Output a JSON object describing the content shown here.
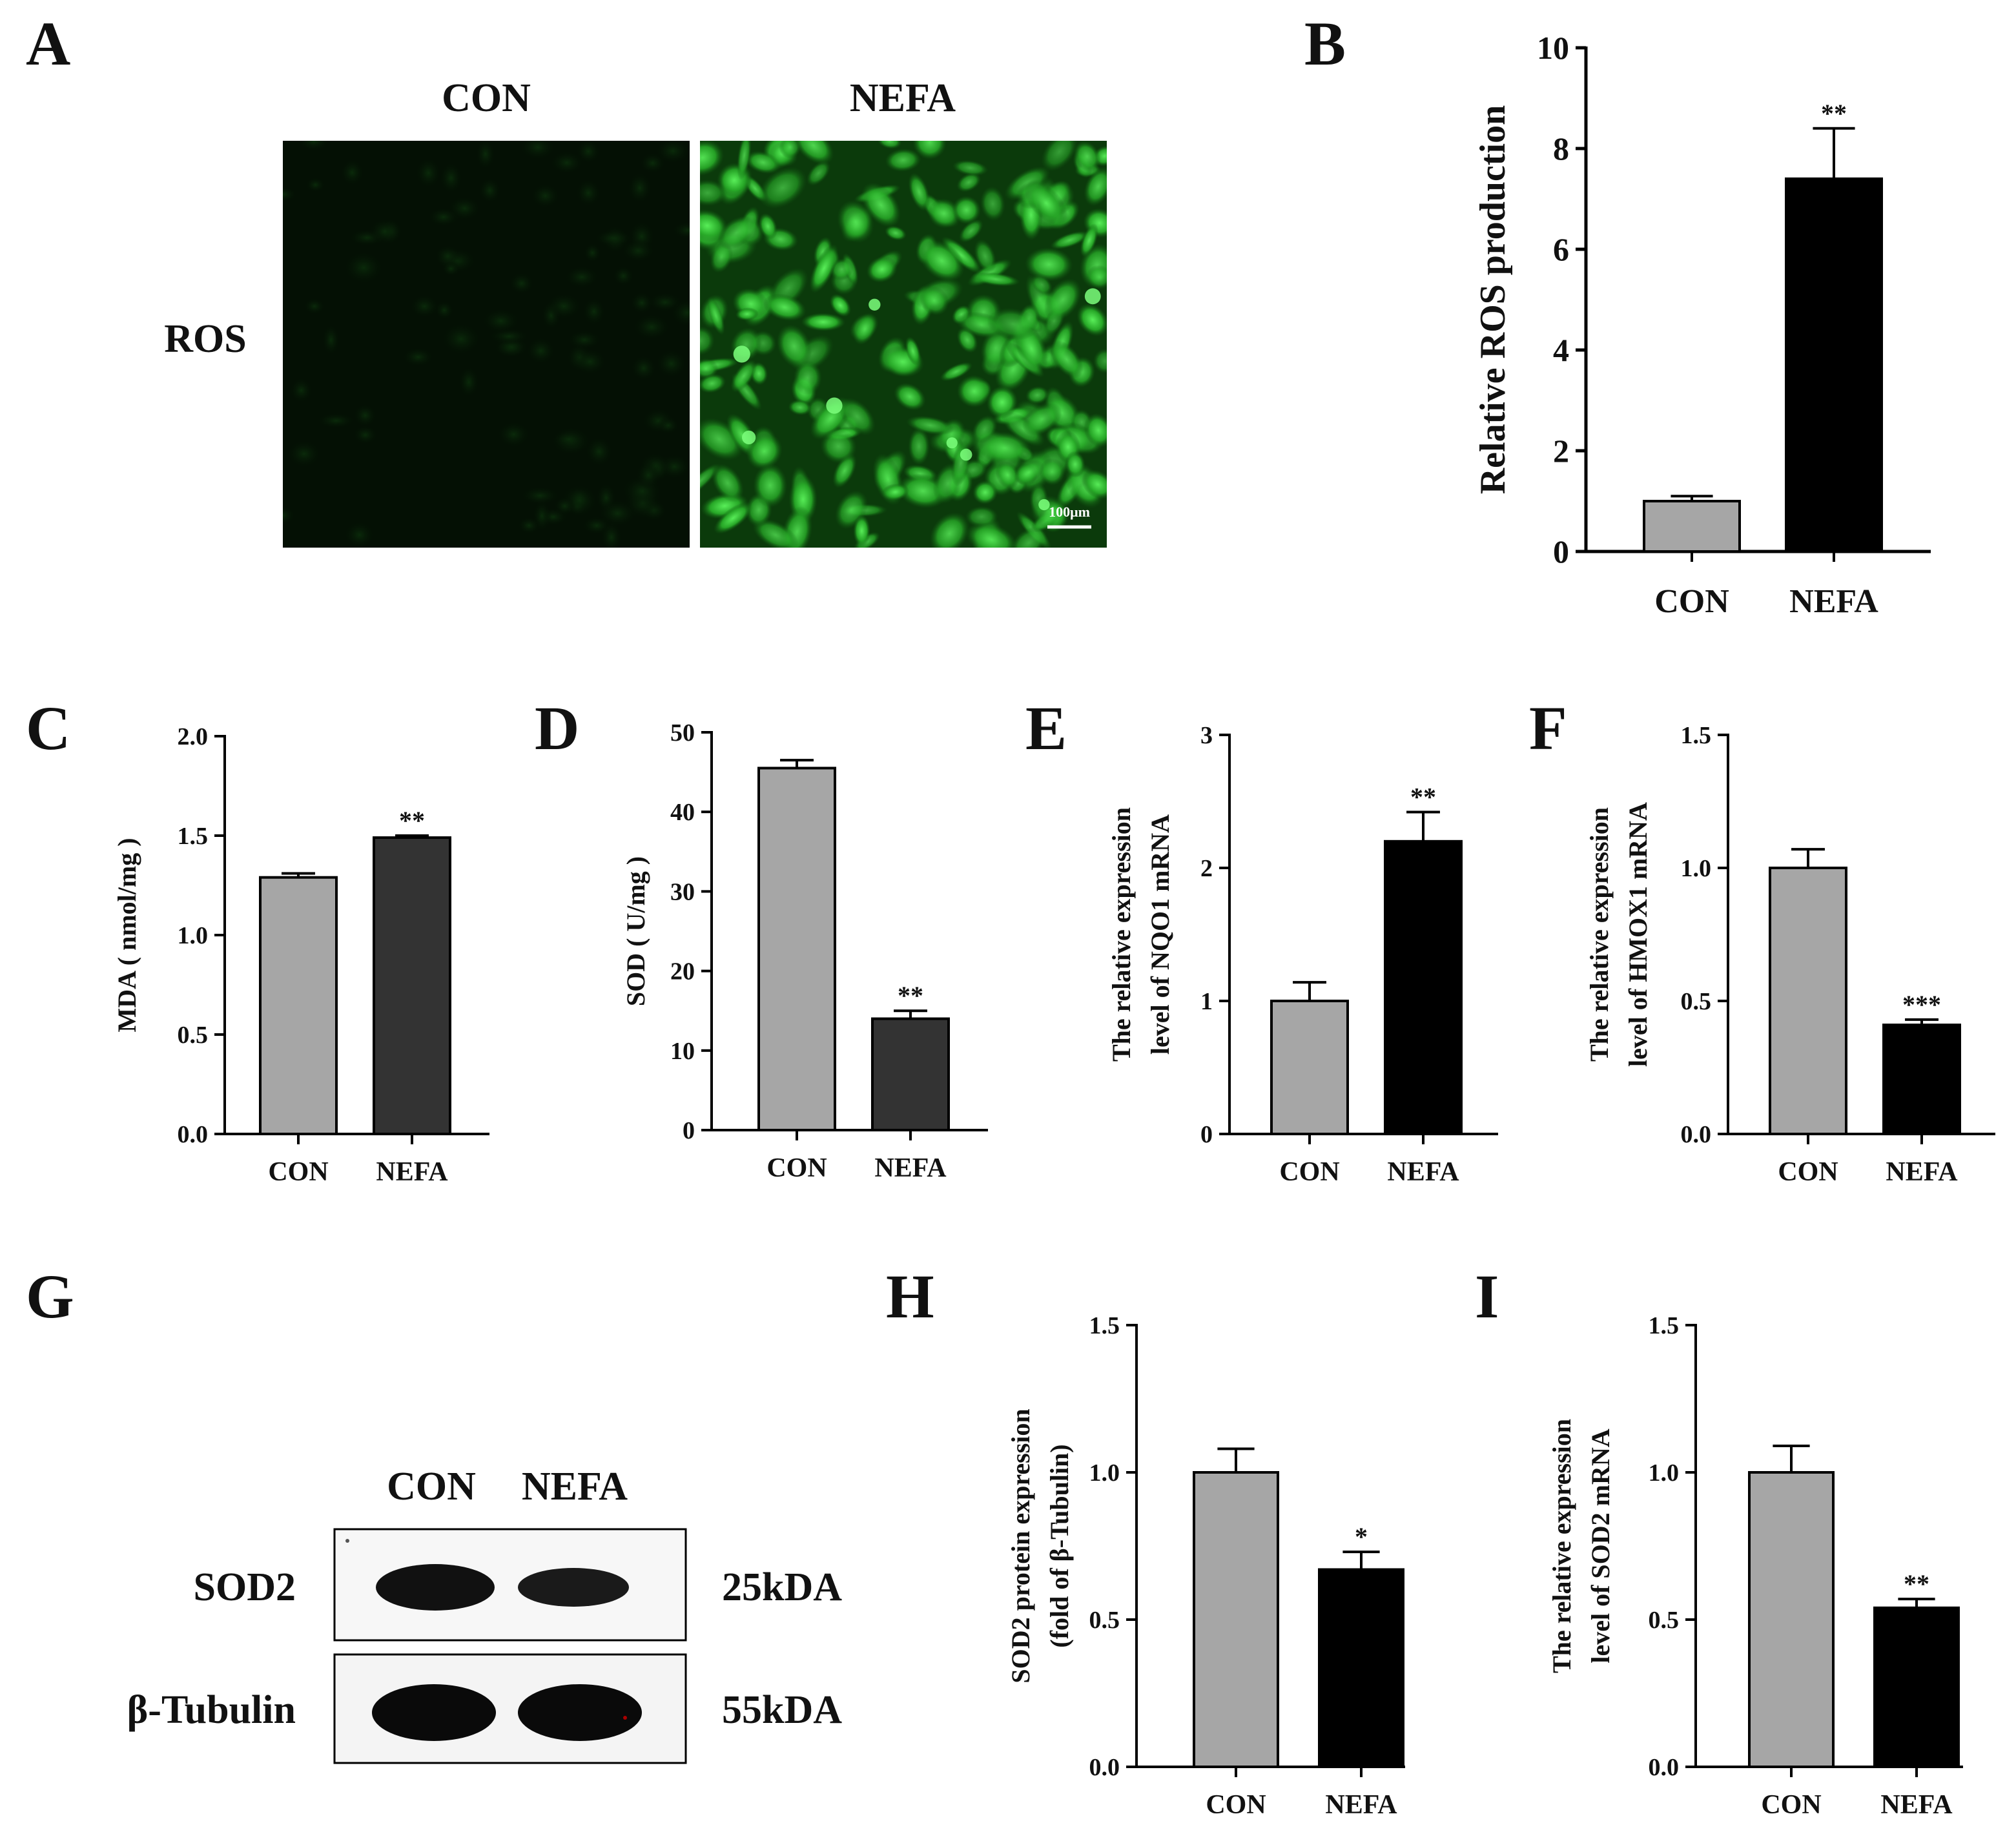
{
  "panel_A": {
    "letter": "A",
    "columns": [
      "CON",
      "NEFA"
    ],
    "row_label": "ROS",
    "scale_bar": "100μm",
    "image_colors": {
      "con_bg": "#041004",
      "nefa_bg": "#0d4a0d",
      "nefa_cell": "#2fb82f",
      "nefa_bright": "#4fe04f"
    }
  },
  "panel_G": {
    "letter": "G",
    "columns": [
      "CON",
      "NEFA"
    ],
    "rows": [
      {
        "protein": "SOD2",
        "size": "25kDA"
      },
      {
        "protein": "β-Tubulin",
        "size": "55kDA"
      }
    ]
  },
  "colors": {
    "con_bar": "#a6a6a6",
    "nefa_bar_black": "#000000",
    "nefa_bar_dark": "#333333",
    "axis": "#000000"
  },
  "chart_data": [
    {
      "panel": "B",
      "type": "bar",
      "categories": [
        "CON",
        "NEFA"
      ],
      "values": [
        1.0,
        7.4
      ],
      "errors": [
        0.1,
        1.0
      ],
      "significance": [
        "",
        "**"
      ],
      "ylabel": "Relative ROS production",
      "ylim": [
        0,
        10
      ],
      "ticks": [
        "0",
        "2",
        "4",
        "6",
        "8",
        "10"
      ],
      "bar_colors": [
        "#a6a6a6",
        "#000000"
      ]
    },
    {
      "panel": "C",
      "type": "bar",
      "categories": [
        "CON",
        "NEFA"
      ],
      "values": [
        1.29,
        1.49
      ],
      "errors": [
        0.02,
        0.01
      ],
      "significance": [
        "",
        "**"
      ],
      "ylabel": "MDA ( nmol/mg )",
      "ylim": [
        0,
        2
      ],
      "ticks": [
        "0.0",
        "0.5",
        "1.0",
        "1.5",
        "2.0"
      ],
      "bar_colors": [
        "#a6a6a6",
        "#333333"
      ]
    },
    {
      "panel": "D",
      "type": "bar",
      "categories": [
        "CON",
        "NEFA"
      ],
      "values": [
        45.5,
        14.0
      ],
      "errors": [
        1.0,
        1.0
      ],
      "significance": [
        "",
        "**"
      ],
      "ylabel": "SOD ( U/mg )",
      "ylim": [
        0,
        50
      ],
      "ticks": [
        "0",
        "10",
        "20",
        "30",
        "40",
        "50"
      ],
      "bar_colors": [
        "#a6a6a6",
        "#333333"
      ]
    },
    {
      "panel": "E",
      "type": "bar",
      "categories": [
        "CON",
        "NEFA"
      ],
      "values": [
        1.0,
        2.2
      ],
      "errors": [
        0.14,
        0.22
      ],
      "significance": [
        "",
        "**"
      ],
      "ylabel_lines": [
        "The relative expression",
        "level of NQO1 mRNA"
      ],
      "ylim": [
        0,
        3
      ],
      "ticks": [
        "0",
        "1",
        "2",
        "3"
      ],
      "bar_colors": [
        "#a6a6a6",
        "#000000"
      ]
    },
    {
      "panel": "F",
      "type": "bar",
      "categories": [
        "CON",
        "NEFA"
      ],
      "values": [
        1.0,
        0.41
      ],
      "errors": [
        0.07,
        0.02
      ],
      "significance": [
        "",
        "***"
      ],
      "ylabel_lines": [
        "The relative expression",
        "level of HMOX1 mRNA"
      ],
      "ylim": [
        0,
        1.5
      ],
      "ticks": [
        "0.0",
        "0.5",
        "1.0",
        "1.5"
      ],
      "bar_colors": [
        "#a6a6a6",
        "#000000"
      ]
    },
    {
      "panel": "H",
      "type": "bar",
      "categories": [
        "CON",
        "NEFA"
      ],
      "values": [
        1.0,
        0.67
      ],
      "errors": [
        0.08,
        0.06
      ],
      "significance": [
        "",
        "*"
      ],
      "ylabel_lines": [
        "SOD2 protein expression",
        "(fold of β-Tubulin)"
      ],
      "ylim": [
        0,
        1.5
      ],
      "ticks": [
        "0.0",
        "0.5",
        "1.0",
        "1.5"
      ],
      "bar_colors": [
        "#a6a6a6",
        "#000000"
      ]
    },
    {
      "panel": "I",
      "type": "bar",
      "categories": [
        "CON",
        "NEFA"
      ],
      "values": [
        1.0,
        0.54
      ],
      "errors": [
        0.09,
        0.03
      ],
      "significance": [
        "",
        "**"
      ],
      "ylabel_lines": [
        "The relative expression",
        "level of SOD2 mRNA"
      ],
      "ylim": [
        0,
        1.5
      ],
      "ticks": [
        "0.0",
        "0.5",
        "1.0",
        "1.5"
      ],
      "bar_colors": [
        "#a6a6a6",
        "#000000"
      ]
    }
  ]
}
